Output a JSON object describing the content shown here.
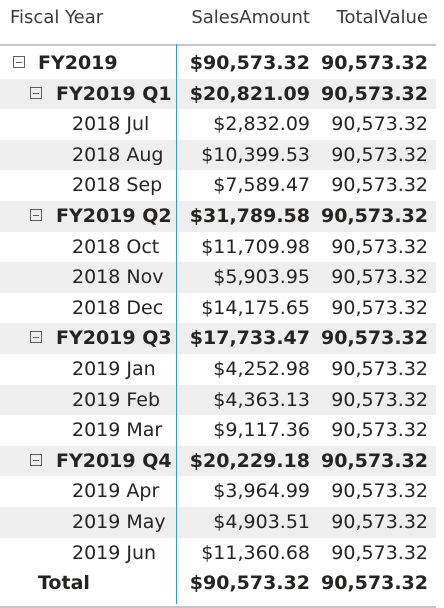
{
  "headers": {
    "fiscal_year": "Fiscal Year",
    "sales_amount": "SalesAmount",
    "total_value": "TotalValue"
  },
  "rows": [
    {
      "label": "FY2019",
      "sales": "$90,573.32",
      "total": "90,573.32"
    },
    {
      "label": "FY2019 Q1",
      "sales": "$20,821.09",
      "total": "90,573.32"
    },
    {
      "label": "2018 Jul",
      "sales": "$2,832.09",
      "total": "90,573.32"
    },
    {
      "label": "2018 Aug",
      "sales": "$10,399.53",
      "total": "90,573.32"
    },
    {
      "label": "2018 Sep",
      "sales": "$7,589.47",
      "total": "90,573.32"
    },
    {
      "label": "FY2019 Q2",
      "sales": "$31,789.58",
      "total": "90,573.32"
    },
    {
      "label": "2018 Oct",
      "sales": "$11,709.98",
      "total": "90,573.32"
    },
    {
      "label": "2018 Nov",
      "sales": "$5,903.95",
      "total": "90,573.32"
    },
    {
      "label": "2018 Dec",
      "sales": "$14,175.65",
      "total": "90,573.32"
    },
    {
      "label": "FY2019 Q3",
      "sales": "$17,733.47",
      "total": "90,573.32"
    },
    {
      "label": "2019 Jan",
      "sales": "$4,252.98",
      "total": "90,573.32"
    },
    {
      "label": "2019 Feb",
      "sales": "$4,363.13",
      "total": "90,573.32"
    },
    {
      "label": "2019 Mar",
      "sales": "$9,117.36",
      "total": "90,573.32"
    },
    {
      "label": "FY2019 Q4",
      "sales": "$20,229.18",
      "total": "90,573.32"
    },
    {
      "label": "2019 Apr",
      "sales": "$3,964.99",
      "total": "90,573.32"
    },
    {
      "label": "2019 May",
      "sales": "$4,903.51",
      "total": "90,573.32"
    },
    {
      "label": "2019 Jun",
      "sales": "$11,360.68",
      "total": "90,573.32"
    },
    {
      "label": "Total",
      "sales": "$90,573.32",
      "total": "90,573.32"
    }
  ],
  "colors": {
    "row_stripe": "#eeeeee",
    "divider_accent": "#2f9bd8",
    "header_border": "#c8c6c4",
    "text": "#252423"
  }
}
